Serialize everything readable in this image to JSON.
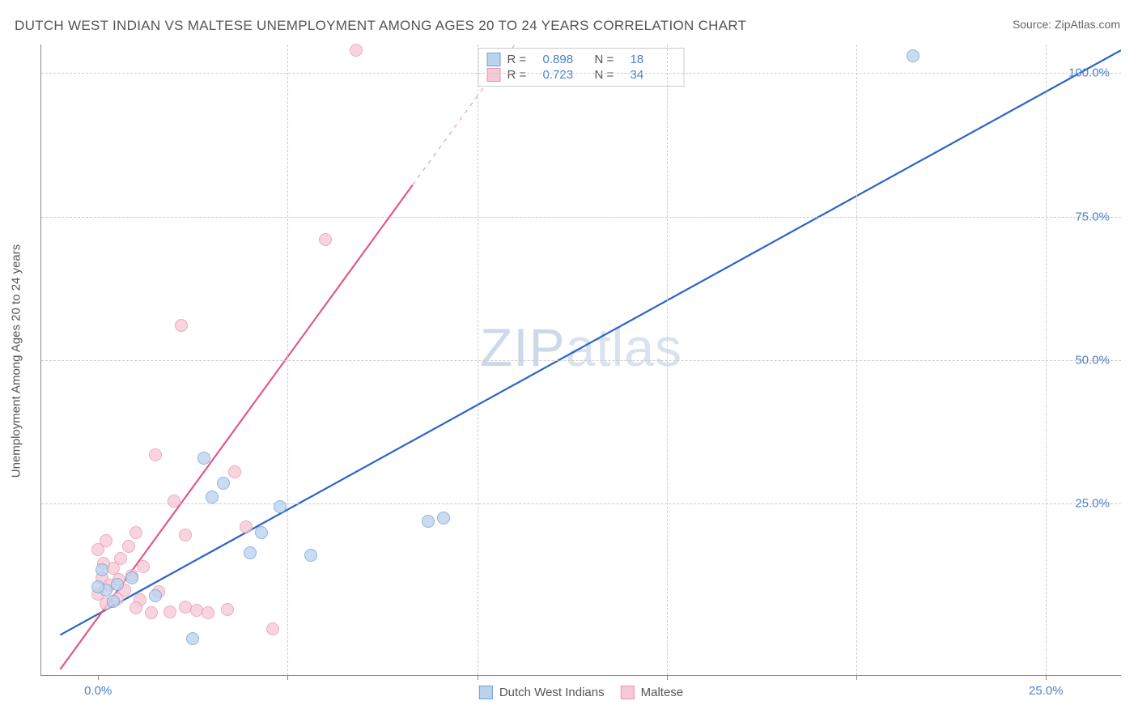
{
  "title": "DUTCH WEST INDIAN VS MALTESE UNEMPLOYMENT AMONG AGES 20 TO 24 YEARS CORRELATION CHART",
  "source": "Source: ZipAtlas.com",
  "watermark_a": "ZIP",
  "watermark_b": "atlas",
  "y_axis_label": "Unemployment Among Ages 20 to 24 years",
  "chart": {
    "type": "scatter",
    "background_color": "#ffffff",
    "grid_color": "#cccccc",
    "axis_color": "#888888",
    "tick_label_color": "#4a7fc9",
    "text_color": "#555555",
    "xlim": [
      -1.5,
      27
    ],
    "ylim": [
      -5,
      105
    ],
    "x_ticks": [
      0,
      5,
      10,
      15,
      20,
      25
    ],
    "x_tick_labels": [
      "0.0%",
      "",
      "",
      "",
      "",
      "25.0%"
    ],
    "y_ticks": [
      25,
      50,
      75,
      100
    ],
    "y_tick_labels": [
      "25.0%",
      "50.0%",
      "75.0%",
      "100.0%"
    ],
    "marker_radius": 8,
    "marker_opacity": 0.78,
    "series": [
      {
        "name": "Dutch West Indians",
        "key": "dutch",
        "fill_color": "#bcd3ef",
        "stroke_color": "#6f9fd8",
        "line_color": "#2a64c9",
        "line_width": 2.2,
        "R": "0.898",
        "N": "18",
        "trend": {
          "x1": -1.0,
          "y1": 2.0,
          "x2": 27.0,
          "y2": 104.0,
          "solid_until_x": 27.0
        },
        "points": [
          {
            "x": 21.5,
            "y": 103.0
          },
          {
            "x": 9.1,
            "y": 22.5
          },
          {
            "x": 8.7,
            "y": 22.0
          },
          {
            "x": 2.8,
            "y": 33.0
          },
          {
            "x": 3.3,
            "y": 28.5
          },
          {
            "x": 3.0,
            "y": 26.2
          },
          {
            "x": 4.8,
            "y": 24.5
          },
          {
            "x": 4.0,
            "y": 16.5
          },
          {
            "x": 5.6,
            "y": 16.0
          },
          {
            "x": 4.3,
            "y": 20.0
          },
          {
            "x": 2.5,
            "y": 1.5
          },
          {
            "x": 0.9,
            "y": 12.0
          },
          {
            "x": 0.5,
            "y": 11.0
          },
          {
            "x": 0.2,
            "y": 10.0
          },
          {
            "x": 0.0,
            "y": 10.5
          },
          {
            "x": 1.5,
            "y": 9.0
          },
          {
            "x": 0.4,
            "y": 8.0
          },
          {
            "x": 0.1,
            "y": 13.5
          }
        ]
      },
      {
        "name": "Maltese",
        "key": "maltese",
        "fill_color": "#f7c9d6",
        "stroke_color": "#e695ac",
        "line_color": "#e05a85",
        "line_width": 2.2,
        "R": "0.723",
        "N": "34",
        "trend": {
          "x1": -1.0,
          "y1": -4.0,
          "x2": 11.0,
          "y2": 105.0,
          "solid_until_x": 8.3
        },
        "points": [
          {
            "x": 6.8,
            "y": 104.0
          },
          {
            "x": 6.0,
            "y": 71.0
          },
          {
            "x": 2.2,
            "y": 56.0
          },
          {
            "x": 1.5,
            "y": 33.5
          },
          {
            "x": 3.6,
            "y": 30.5
          },
          {
            "x": 3.9,
            "y": 21.0
          },
          {
            "x": 2.0,
            "y": 25.5
          },
          {
            "x": 2.3,
            "y": 19.5
          },
          {
            "x": 1.0,
            "y": 20.0
          },
          {
            "x": 0.2,
            "y": 18.5
          },
          {
            "x": 0.0,
            "y": 17.0
          },
          {
            "x": 0.6,
            "y": 15.5
          },
          {
            "x": 1.2,
            "y": 14.0
          },
          {
            "x": 0.9,
            "y": 12.5
          },
          {
            "x": 0.1,
            "y": 12.0
          },
          {
            "x": 0.3,
            "y": 10.8
          },
          {
            "x": 0.7,
            "y": 10.0
          },
          {
            "x": 0.0,
            "y": 9.2
          },
          {
            "x": 0.5,
            "y": 8.4
          },
          {
            "x": 1.1,
            "y": 8.2
          },
          {
            "x": 0.2,
            "y": 7.6
          },
          {
            "x": 1.6,
            "y": 9.6
          },
          {
            "x": 1.0,
            "y": 6.8
          },
          {
            "x": 1.4,
            "y": 6.0
          },
          {
            "x": 1.9,
            "y": 6.2
          },
          {
            "x": 2.3,
            "y": 7.0
          },
          {
            "x": 2.6,
            "y": 6.4
          },
          {
            "x": 2.9,
            "y": 6.0
          },
          {
            "x": 3.4,
            "y": 6.6
          },
          {
            "x": 4.6,
            "y": 3.2
          },
          {
            "x": 0.4,
            "y": 13.8
          },
          {
            "x": 0.8,
            "y": 17.5
          },
          {
            "x": 0.15,
            "y": 14.6
          },
          {
            "x": 0.55,
            "y": 11.8
          }
        ]
      }
    ]
  },
  "legend_top": {
    "r_label": "R =",
    "n_label": "N ="
  },
  "legend_bottom": [
    {
      "key": "dutch"
    },
    {
      "key": "maltese"
    }
  ]
}
